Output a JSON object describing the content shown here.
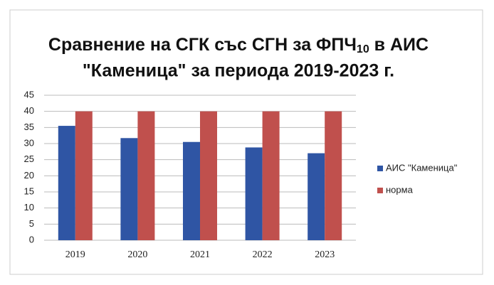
{
  "chart_data": {
    "type": "bar",
    "title": {
      "main": "Сравнение на СГК със СГН за ФПЧ",
      "subscript": "10",
      "main_end": "в АИС",
      "line2": "\"Каменица\" за периода 2019-2023 г."
    },
    "categories": [
      "2019",
      "2020",
      "2021",
      "2022",
      "2023"
    ],
    "series": [
      {
        "name": "АИС \"Каменица\"",
        "color": "#2f55a4",
        "values": [
          35.5,
          31.7,
          30.5,
          28.8,
          27
        ]
      },
      {
        "name": "норма",
        "color": "#c0504d",
        "values": [
          40,
          40,
          40,
          40,
          40
        ]
      }
    ],
    "ylim": [
      0,
      45
    ],
    "yticks": [
      0,
      5,
      10,
      15,
      20,
      25,
      30,
      35,
      40,
      45
    ],
    "grid": true,
    "legend": "right"
  }
}
